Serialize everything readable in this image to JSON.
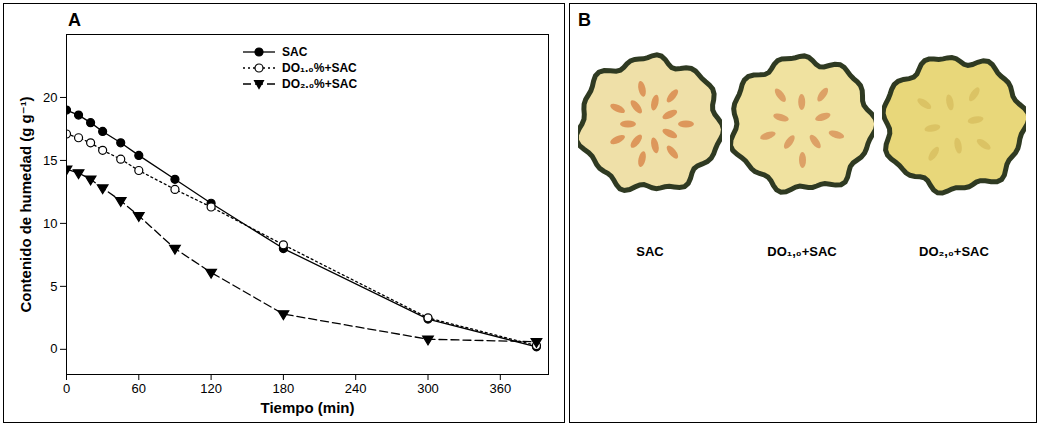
{
  "chart_data": {
    "type": "line",
    "title": "A",
    "x_label": "Tiempo (min)",
    "y_label": "Contenido de humedad (g g⁻¹)",
    "x": [
      0,
      10,
      20,
      30,
      45,
      60,
      90,
      120,
      180,
      300,
      390
    ],
    "series": [
      {
        "name": "SAC",
        "color": "#000000",
        "marker": "circle",
        "line_style": "solid",
        "values": [
          19.0,
          18.6,
          18.0,
          17.3,
          16.4,
          15.4,
          13.5,
          11.6,
          8.0,
          2.4,
          0.2
        ]
      },
      {
        "name": "DO₁.₀%+SAC",
        "color": "#000000",
        "marker": "open_circle",
        "line_style": "dotted",
        "values": [
          17.1,
          16.8,
          16.4,
          15.8,
          15.1,
          14.2,
          12.7,
          11.3,
          8.3,
          2.5,
          0.3
        ]
      },
      {
        "name": "DO₂.₀%+SAC",
        "color": "#000000",
        "marker": "triangle_down",
        "line_style": "dashed",
        "values": [
          14.3,
          14.0,
          13.5,
          12.8,
          11.8,
          10.6,
          8.0,
          6.1,
          2.8,
          0.8,
          0.6
        ]
      }
    ],
    "xlim": [
      0,
      400
    ],
    "xticks": [
      0,
      60,
      120,
      180,
      240,
      300,
      360
    ],
    "ylim": [
      -2,
      25
    ],
    "yticks": [
      0,
      5,
      10,
      15,
      20
    ],
    "grid": false,
    "legend": "upper center"
  },
  "photos": {
    "title": "B",
    "labels": [
      "SAC",
      "DO₁,₀+SAC",
      "DO₂,₀+SAC"
    ]
  }
}
